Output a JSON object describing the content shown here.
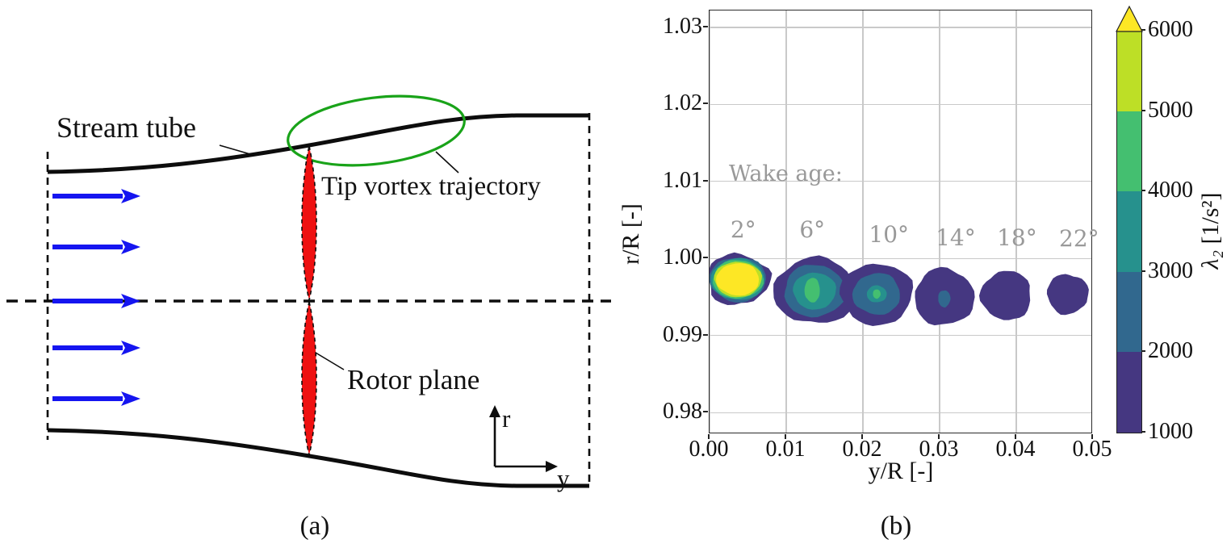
{
  "figure": {
    "caption_a": "(a)",
    "caption_b": "(b)"
  },
  "diagram": {
    "labels": {
      "stream_tube": "Stream tube",
      "tip_vortex_trajectory": "Tip vortex trajectory",
      "rotor_plane": "Rotor plane",
      "axis_r": "r",
      "axis_y": "y"
    },
    "colors": {
      "rotor_red": "#ee1111",
      "vortex_ellipse_green": "#19a319",
      "inflow_arrow_blue": "#1515f0",
      "line_black": "#0d0d0d"
    }
  },
  "chart_data": {
    "type": "heatmap",
    "subtype": "filled-contour",
    "title": "",
    "xlabel": "y/R [-]",
    "ylabel": "r/R [-]",
    "xlim": [
      0.0,
      0.05
    ],
    "ylim": [
      0.9772,
      1.0322
    ],
    "xticks": [
      "0.00",
      "0.01",
      "0.02",
      "0.03",
      "0.04",
      "0.05"
    ],
    "yticks": [
      "1.03",
      "1.02",
      "1.01",
      "1.00",
      "0.99",
      "0.98"
    ],
    "grid": true,
    "annotation": {
      "text": "Wake age:",
      "y_R": 0.0028,
      "r_R": 1.0107,
      "color": "#999999"
    },
    "colorbar": {
      "label_symbol": "λ₂",
      "label_unit": " [1/s²]",
      "ticks": [
        "1000",
        "2000",
        "3000",
        "4000",
        "5000",
        "6000"
      ],
      "range": [
        1000,
        6000
      ],
      "extend": "max",
      "band_order_bottom_to_top": [
        "purple",
        "blue",
        "teal",
        "green",
        "yellowgreen"
      ],
      "over_color_key": "yellow",
      "colors": {
        "purple": "#453781",
        "blue": "#31688e",
        "teal": "#26918d",
        "green": "#44bf70",
        "yellowgreen": "#bddf26",
        "yellow": "#fde725"
      }
    },
    "vortices": [
      {
        "wake_age": "2°",
        "label_pos": {
          "y_R": 0.0045,
          "r_R": 1.0036
        },
        "center": {
          "y_R": 0.0037,
          "r_R": 0.9973
        },
        "peak_lambda2": 6400,
        "rings": [
          {
            "band": "1000-2000",
            "color": "purple",
            "rx": 0.0041,
            "ry": 0.0033
          },
          {
            "band": "2000-3000",
            "color": "blue",
            "rx": 0.0037,
            "ry": 0.0029
          },
          {
            "band": "3000-4000",
            "color": "teal",
            "rx": 0.0035,
            "ry": 0.0027
          },
          {
            "band": "4000-5000",
            "color": "green",
            "rx": 0.0033,
            "ry": 0.0025
          },
          {
            "band": "5000-6000",
            "color": "yellowgreen",
            "rx": 0.0031,
            "ry": 0.0023
          },
          {
            "band": ">6000",
            "color": "yellow",
            "rx": 0.0028,
            "ry": 0.0021
          }
        ]
      },
      {
        "wake_age": "6°",
        "label_pos": {
          "y_R": 0.0135,
          "r_R": 1.0036
        },
        "center": {
          "y_R": 0.0137,
          "r_R": 0.9958
        },
        "peak_lambda2": 4800,
        "rings": [
          {
            "band": "1000-2000",
            "color": "purple",
            "rx": 0.0053,
            "ry": 0.0043
          },
          {
            "band": "2000-3000",
            "color": "blue",
            "rx": 0.004,
            "ry": 0.0034
          },
          {
            "band": "3000-4000",
            "color": "teal",
            "rx": 0.0028,
            "ry": 0.0024
          },
          {
            "band": "4000-5000",
            "color": "green",
            "rx": 0.001,
            "ry": 0.0016,
            "dx": -0.0003,
            "dy": 0.0001
          }
        ]
      },
      {
        "wake_age": "10°",
        "label_pos": {
          "y_R": 0.0235,
          "r_R": 1.003
        },
        "center": {
          "y_R": 0.0218,
          "r_R": 0.9954
        },
        "peak_lambda2": 4200,
        "rings": [
          {
            "band": "1000-2000",
            "color": "purple",
            "rx": 0.0047,
            "ry": 0.004
          },
          {
            "band": "2000-3000",
            "color": "blue",
            "rx": 0.0031,
            "ry": 0.0027
          },
          {
            "band": "3000-4000",
            "color": "teal",
            "rx": 0.0013,
            "ry": 0.0011
          },
          {
            "band": "4000-5000",
            "color": "green",
            "rx": 0.0005,
            "ry": 0.0006
          }
        ]
      },
      {
        "wake_age": "14°",
        "label_pos": {
          "y_R": 0.0322,
          "r_R": 1.0026
        },
        "center": {
          "y_R": 0.0306,
          "r_R": 0.995
        },
        "peak_lambda2": 2900,
        "rings": [
          {
            "band": "1000-2000",
            "color": "purple",
            "rx": 0.0039,
            "ry": 0.0037
          },
          {
            "band": "2000-3000",
            "color": "blue",
            "rx": 0.0008,
            "ry": 0.0011,
            "dy": -0.0002
          }
        ]
      },
      {
        "wake_age": "18°",
        "label_pos": {
          "y_R": 0.0402,
          "r_R": 1.0026
        },
        "center": {
          "y_R": 0.0387,
          "r_R": 0.9952
        },
        "peak_lambda2": 1900,
        "rings": [
          {
            "band": "1000-2000",
            "color": "purple",
            "rx": 0.0033,
            "ry": 0.0032
          }
        ]
      },
      {
        "wake_age": "22°",
        "label_pos": {
          "y_R": 0.0483,
          "r_R": 1.0025
        },
        "center": {
          "y_R": 0.0467,
          "r_R": 0.9954
        },
        "peak_lambda2": 1800,
        "rings": [
          {
            "band": "1000-2000",
            "color": "purple",
            "rx": 0.0027,
            "ry": 0.0026
          }
        ]
      }
    ]
  }
}
